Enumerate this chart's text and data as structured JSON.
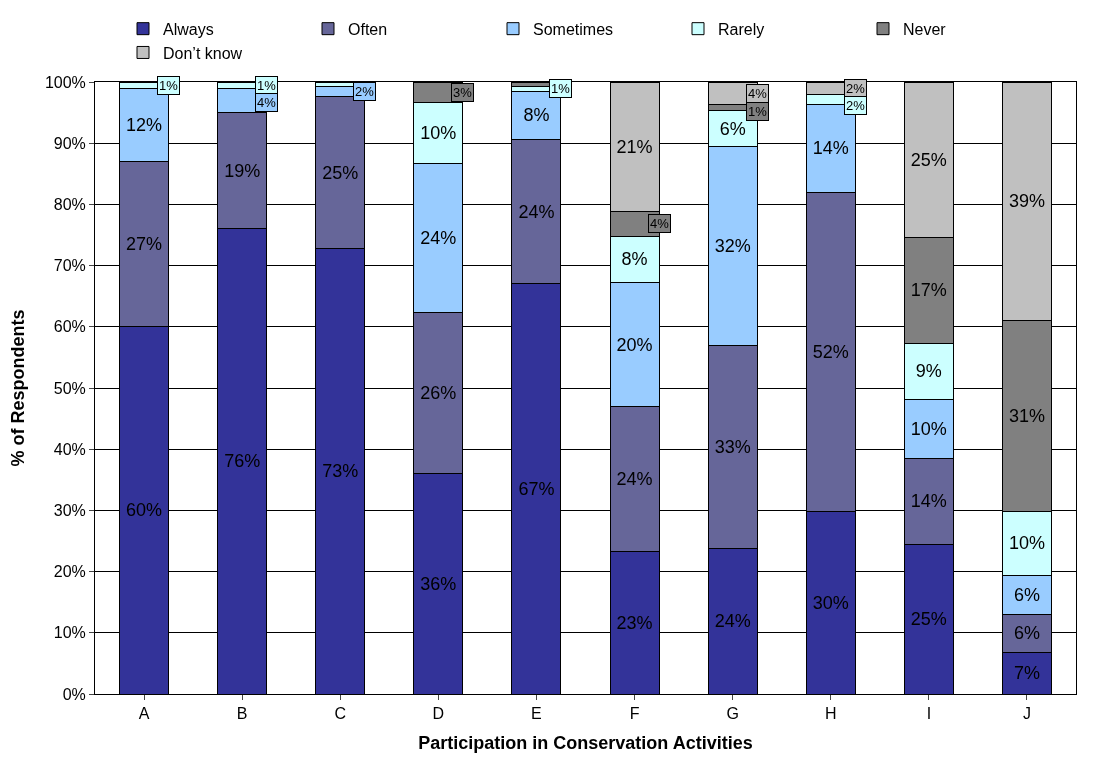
{
  "chart_data": {
    "type": "bar",
    "stacked": true,
    "xlabel": "Participation in Conservation Activities",
    "ylabel": "% of Respondents",
    "categories": [
      "A",
      "B",
      "C",
      "D",
      "E",
      "F",
      "G",
      "H",
      "I",
      "J"
    ],
    "series": [
      {
        "name": "Always",
        "color": "#333399",
        "values": [
          60,
          76,
          72.8,
          36.1,
          67,
          23.3,
          23.7,
          29.8,
          24.5,
          6.8
        ],
        "value_labels": [
          "60%",
          "76%",
          "73%",
          "36%",
          "67%",
          "23%",
          "24%",
          "30%",
          "25%",
          "7%"
        ]
      },
      {
        "name": "Often",
        "color": "#666699",
        "values": [
          27,
          19,
          24.8,
          26.2,
          23.6,
          23.7,
          33.3,
          52.2,
          14,
          6.2
        ],
        "value_labels": [
          "27%",
          "19%",
          "25%",
          "26%",
          "24%",
          "24%",
          "33%",
          "52%",
          "14%",
          "6%"
        ]
      },
      {
        "name": "Sometimes",
        "color": "#99ccff",
        "values": [
          12,
          4,
          1.7,
          24.4,
          7.9,
          20.2,
          32.4,
          14.3,
          9.6,
          6.4
        ],
        "value_labels": [
          "12%",
          "4%",
          "2%",
          "24%",
          "8%",
          "20%",
          "32%",
          "14%",
          "10%",
          "6%"
        ]
      },
      {
        "name": "Rarely",
        "color": "#ccffff",
        "values": [
          1,
          1,
          0.7,
          10,
          0.8,
          7.6,
          5.9,
          1.7,
          9.2,
          10.4
        ],
        "value_labels": [
          "1%",
          "1%",
          null,
          "10%",
          "1%",
          "8%",
          "6%",
          "2%",
          "9%",
          "10%"
        ]
      },
      {
        "name": "Never",
        "color": "#808080",
        "values": [
          null,
          null,
          null,
          3.3,
          0.7,
          4,
          1,
          null,
          17.3,
          31.2
        ],
        "value_labels": [
          null,
          null,
          null,
          "3%",
          null,
          "4%",
          "1%",
          null,
          "17%",
          "31%"
        ]
      },
      {
        "name": "Don’t know",
        "color": "#c0c0c0",
        "values": [
          null,
          null,
          null,
          null,
          null,
          21.2,
          3.7,
          2,
          25.4,
          39
        ],
        "value_labels": [
          null,
          null,
          null,
          null,
          null,
          "21%",
          "4%",
          "2%",
          "25%",
          "39%"
        ]
      }
    ],
    "ylim": [
      0,
      100
    ],
    "yticks": [
      {
        "value": 0,
        "label": "0%"
      },
      {
        "value": 10,
        "label": "10%"
      },
      {
        "value": 20,
        "label": "20%"
      },
      {
        "value": 30,
        "label": "30%"
      },
      {
        "value": 40,
        "label": "40%"
      },
      {
        "value": 50,
        "label": "50%"
      },
      {
        "value": 60,
        "label": "60%"
      },
      {
        "value": 70,
        "label": "70%"
      },
      {
        "value": 80,
        "label": "80%"
      },
      {
        "value": 90,
        "label": "90%"
      },
      {
        "value": 100,
        "label": "100%"
      }
    ],
    "grid": "y",
    "legend": "top"
  }
}
